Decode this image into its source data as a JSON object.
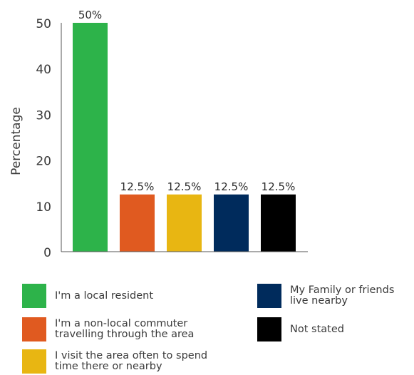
{
  "chart_data": {
    "type": "bar",
    "ylabel": "Percentage",
    "ylim": [
      0,
      50
    ],
    "yticks": [
      0,
      10,
      20,
      30,
      40,
      50
    ],
    "grid": false,
    "legend_position": "bottom",
    "categories": [
      " I'm a local resident",
      "I'm a non-local commuter\ntravelling through the area",
      "I visit the area often to spend\ntime there or nearby",
      "My Family or friends\nlive nearby",
      "Not stated"
    ],
    "values": [
      50,
      12.5,
      12.5,
      12.5,
      12.5
    ],
    "data_labels": [
      "50%",
      "12.5%",
      "12.5%",
      "12.5%",
      "12.5%"
    ],
    "colors": [
      "#2db34a",
      "#e05a20",
      "#e8b612",
      "#002b5c",
      "#000000"
    ]
  }
}
